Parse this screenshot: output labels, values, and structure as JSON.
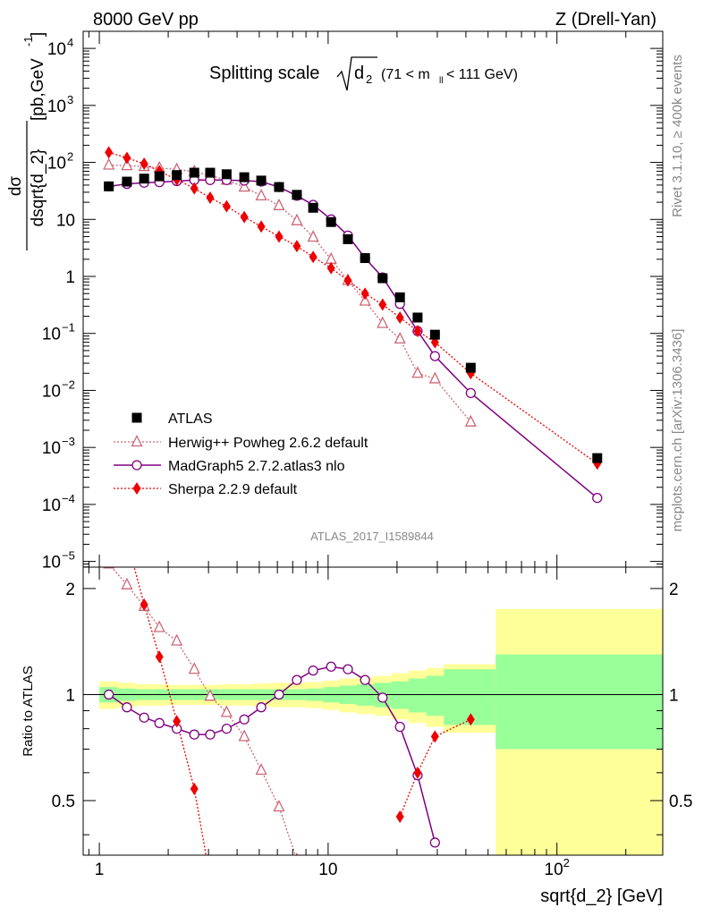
{
  "header": {
    "left": "8000 GeV pp",
    "right": "Z (Drell-Yan)"
  },
  "side_labels": {
    "rivet": "Rivet 3.1.10, ≥ 400k events",
    "mcplots": "mcplots.cern.ch [arXiv:1306.3436]"
  },
  "chart_data": {
    "type": "scatter",
    "title_main": "Splitting scale",
    "title_sym": "d",
    "title_sub": "2",
    "title_range_a": "(71 < m",
    "title_range_sub": "ll",
    "title_range_b": " < 111 GeV)",
    "ylabel_top_a": "dσ",
    "ylabel_top_b": "dsqrt{d_2}",
    "ylabel_top_c": "[pb,GeV",
    "ylabel_top_d": "-1",
    "ylabel_top_e": "]",
    "ylabel_ratio": "Ratio to ATLAS",
    "xlabel": "sqrt{d_2} [GeV]",
    "analysis_id": "ATLAS_2017_I1589844",
    "xlim": [
      0.85,
      290
    ],
    "ylim_main_log10": [
      -5.1,
      4.3
    ],
    "ylim_ratio": [
      0.35,
      2.3
    ],
    "x_ticks": [
      {
        "v": 1,
        "label": "1"
      },
      {
        "v": 10,
        "label": "10"
      },
      {
        "v": 100,
        "label": "10",
        "sup": "2"
      }
    ],
    "y_ticks_main": [
      {
        "e": 4,
        "label": "10",
        "sup": "4"
      },
      {
        "e": 3,
        "label": "10",
        "sup": "3"
      },
      {
        "e": 2,
        "label": "10",
        "sup": "2"
      },
      {
        "e": 1,
        "label": "10",
        "sup": ""
      },
      {
        "e": 0,
        "label": "1",
        "sup": ""
      },
      {
        "e": -1,
        "label": "10",
        "sup": "−1"
      },
      {
        "e": -2,
        "label": "10",
        "sup": "−2"
      },
      {
        "e": -3,
        "label": "10",
        "sup": "−3"
      },
      {
        "e": -4,
        "label": "10",
        "sup": "−4"
      },
      {
        "e": -5,
        "label": "10",
        "sup": "−5"
      }
    ],
    "y_ticks_ratio": [
      {
        "v": 0.5,
        "label": "0.5"
      },
      {
        "v": 1,
        "label": "1"
      },
      {
        "v": 2,
        "label": "2"
      }
    ],
    "x": [
      1.1,
      1.32,
      1.57,
      1.83,
      2.18,
      2.6,
      3.05,
      3.6,
      4.3,
      5.1,
      6.1,
      7.3,
      8.6,
      10.3,
      12.2,
      14.5,
      17.3,
      20.6,
      24.6,
      29.3,
      42,
      150
    ],
    "band_edges": [
      1.0,
      1.2,
      1.44,
      1.72,
      2.0,
      2.4,
      2.84,
      3.35,
      3.95,
      4.7,
      5.6,
      6.7,
      8.0,
      9.5,
      11.2,
      13.3,
      15.9,
      18.9,
      22.5,
      26.8,
      32.0,
      54.0,
      290.0
    ],
    "band_stat": [
      0.05,
      0.04,
      0.035,
      0.035,
      0.035,
      0.035,
      0.035,
      0.035,
      0.035,
      0.035,
      0.035,
      0.035,
      0.04,
      0.05,
      0.06,
      0.07,
      0.08,
      0.09,
      0.11,
      0.13,
      0.18,
      0.3
    ],
    "band_tot": [
      0.09,
      0.08,
      0.07,
      0.07,
      0.065,
      0.065,
      0.065,
      0.07,
      0.07,
      0.075,
      0.08,
      0.08,
      0.085,
      0.095,
      0.11,
      0.12,
      0.13,
      0.15,
      0.17,
      0.19,
      0.22,
      0.75
    ],
    "series": [
      {
        "name": "ATLAS",
        "color": "#000000",
        "marker": "square",
        "line": "none",
        "values": [
          38,
          46,
          52,
          57,
          60,
          66,
          66,
          62,
          55,
          48,
          37,
          27,
          16,
          9,
          4.5,
          2.1,
          0.93,
          0.43,
          0.19,
          0.095,
          0.025,
          0.00065
        ]
      },
      {
        "name": "Herwig++ Powheg 2.6.2 default",
        "color": "#cc6677",
        "marker": "triangle",
        "line": "dotted",
        "values": [
          90,
          88,
          85,
          80,
          75,
          69,
          59,
          49,
          37,
          26,
          17.5,
          9.5,
          4.9,
          2.0,
          0.85,
          0.37,
          0.15,
          0.08,
          0.02,
          0.016,
          0.0028,
          null
        ],
        "ratio": [
          2.35,
          2.05,
          1.78,
          1.55,
          1.42,
          1.18,
          0.99,
          0.89,
          0.76,
          0.61,
          0.48,
          0.34,
          null,
          null,
          null,
          null,
          null,
          null,
          null,
          null,
          null,
          null
        ]
      },
      {
        "name": "MadGraph5 2.7.2.atlas3 nlo",
        "color": "#800080",
        "marker": "circle",
        "line": "solid",
        "values": [
          38,
          42,
          44,
          45,
          47,
          49,
          49,
          49,
          48,
          46,
          37,
          26,
          18,
          10,
          5.2,
          2.1,
          0.96,
          0.33,
          0.11,
          0.04,
          0.009,
          0.00013
        ],
        "ratio": [
          1.0,
          0.92,
          0.86,
          0.83,
          0.8,
          0.77,
          0.77,
          0.8,
          0.85,
          0.92,
          1.0,
          1.1,
          1.17,
          1.2,
          1.18,
          1.1,
          0.98,
          0.81,
          0.59,
          0.38,
          null,
          null
        ]
      },
      {
        "name": "Sherpa 2.2.9 default",
        "color": "#ee0000",
        "marker": "diamond",
        "line": "dotted",
        "values": [
          150,
          120,
          95,
          70,
          50,
          35,
          24,
          17,
          11,
          7.5,
          5,
          3.4,
          2.2,
          1.4,
          0.85,
          0.5,
          0.32,
          0.19,
          0.11,
          0.07,
          0.02,
          0.00052
        ],
        "ratio": [
          3.9,
          2.75,
          1.8,
          1.28,
          0.84,
          0.54,
          0.3,
          null,
          null,
          null,
          null,
          null,
          null,
          null,
          null,
          null,
          null,
          0.45,
          0.6,
          0.76,
          0.85,
          null
        ]
      }
    ]
  }
}
